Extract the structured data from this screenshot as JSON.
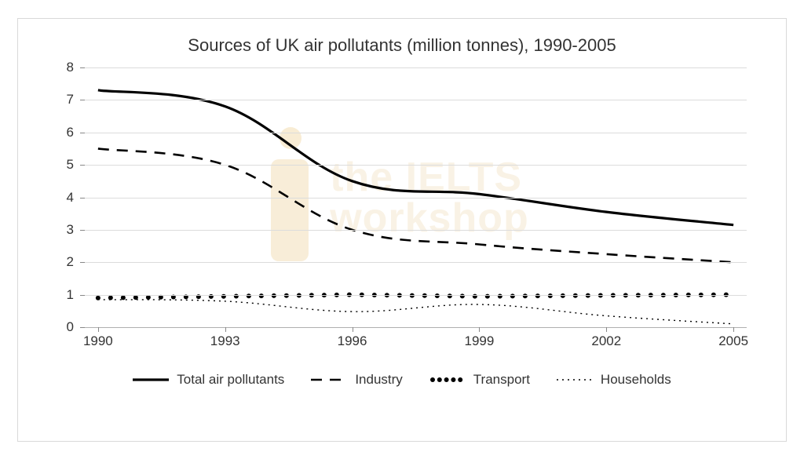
{
  "chart": {
    "type": "line",
    "title": "Sources of UK air pollutants (million tonnes), 1990-2005",
    "title_fontsize": 22,
    "background_color": "#ffffff",
    "border_color": "#d9d9d9",
    "grid_color": "#dcdcdc",
    "axis_color": "#b0b0b0",
    "text_color": "#333333",
    "label_fontsize": 17,
    "x": {
      "categories": [
        "1990",
        "1993",
        "1996",
        "1999",
        "2002",
        "2005"
      ],
      "domain_padding": 0.02
    },
    "y": {
      "min": 0,
      "max": 8,
      "tick_step": 1,
      "grid": true
    },
    "series": [
      {
        "name": "Total air pollutants",
        "values": [
          7.3,
          6.8,
          4.5,
          4.1,
          3.55,
          3.15
        ],
        "color": "#000000",
        "line_width": 3.2,
        "dash": "solid",
        "marker": "none"
      },
      {
        "name": "Industry",
        "values": [
          5.5,
          5.0,
          3.0,
          2.55,
          2.25,
          2.0
        ],
        "color": "#000000",
        "line_width": 2.6,
        "dash": "14,10",
        "marker": "none"
      },
      {
        "name": "Transport",
        "values": [
          0.9,
          0.95,
          1.0,
          0.95,
          0.98,
          1.0
        ],
        "color": "#000000",
        "line_width": 0,
        "dash": "dotted-markers",
        "marker": "dot",
        "marker_radius": 3.0,
        "marker_spacing": 16
      },
      {
        "name": "Households",
        "values": [
          0.85,
          0.8,
          0.48,
          0.7,
          0.35,
          0.1
        ],
        "color": "#000000",
        "line_width": 1.4,
        "dash": "2,5",
        "marker": "none"
      }
    ],
    "legend": {
      "position": "bottom",
      "items": [
        "Total air pollutants",
        "Industry",
        "Transport",
        "Households"
      ]
    },
    "watermark": {
      "line1": "the IELTS",
      "line2": "workshop",
      "color": "#f6ead4"
    }
  }
}
